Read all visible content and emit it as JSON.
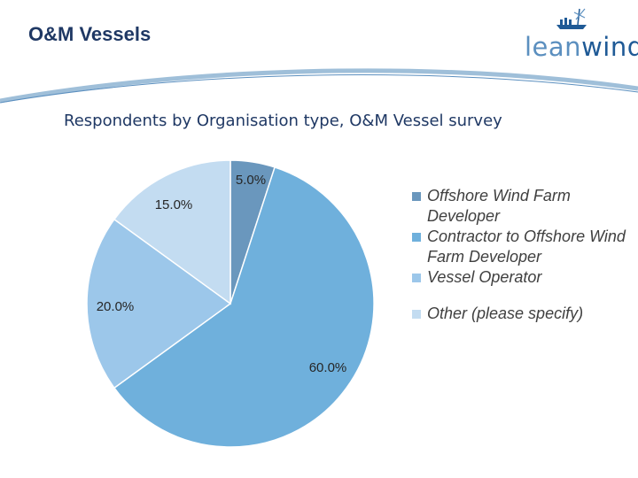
{
  "header": {
    "title": "O&M Vessels",
    "logo_text_lean": "lean",
    "logo_text_wind": "wind"
  },
  "colors": {
    "title": "#1f3864",
    "slice_offshore": "#6a97bd",
    "slice_contractor": "#6fb0dc",
    "slice_vessel": "#9cc7ea",
    "slice_other": "#c3dcf1"
  },
  "chart_data": {
    "type": "pie",
    "title": "Respondents by Organisation type, O&M Vessel survey",
    "slices": [
      {
        "label": "Offshore Wind Farm Developer",
        "value": 5.0,
        "data_label": "5.0%",
        "color": "#6a97bd"
      },
      {
        "label": "Contractor to Offshore Wind Farm Developer",
        "value": 60.0,
        "data_label": "60.0%",
        "color": "#6fb0dc"
      },
      {
        "label": "Vessel Operator",
        "value": 20.0,
        "data_label": "20.0%",
        "color": "#9cc7ea"
      },
      {
        "label": "Other (please specify)",
        "value": 15.0,
        "data_label": "15.0%",
        "color": "#c3dcf1"
      }
    ],
    "legend_position": "right"
  }
}
